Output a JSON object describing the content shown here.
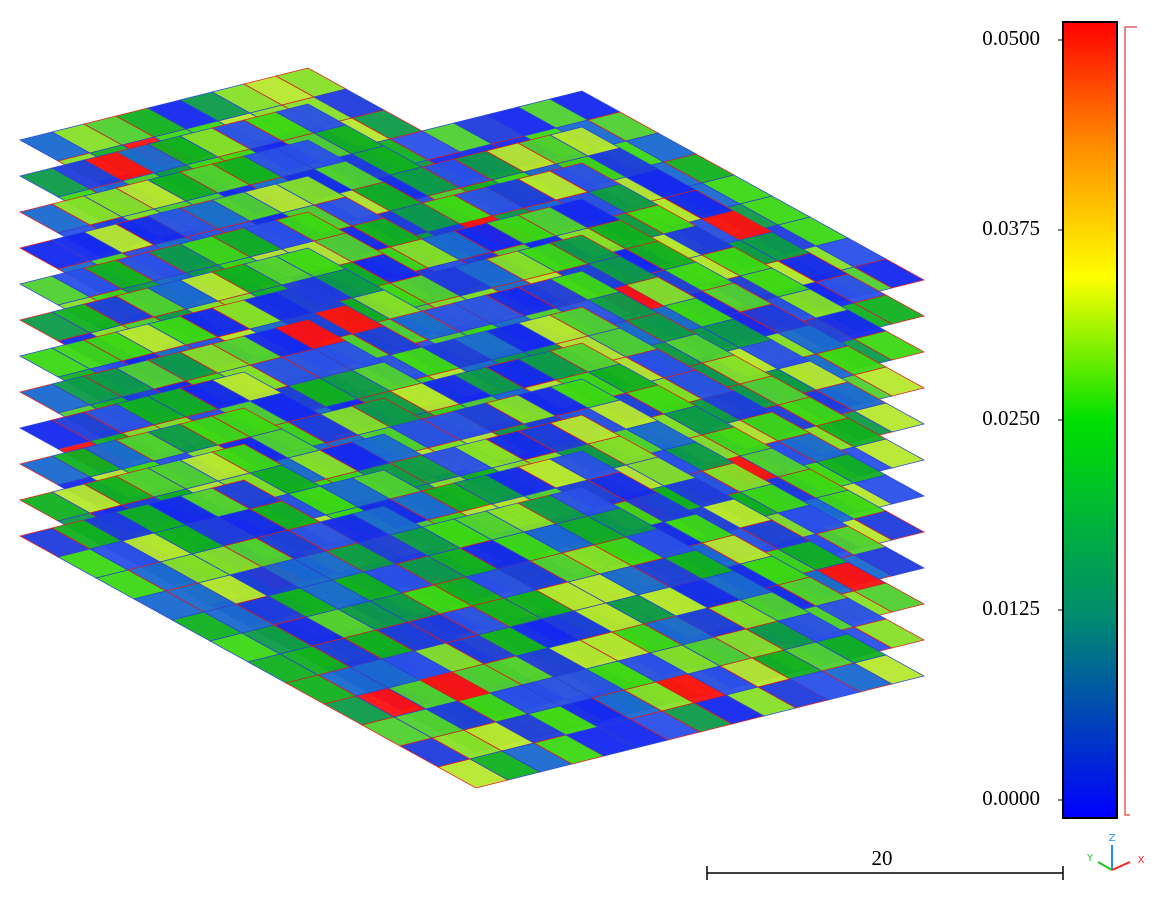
{
  "color_scale": {
    "min": 0,
    "max": 0.05,
    "ticks": [
      {
        "value": 0.05,
        "label": "0.0500"
      },
      {
        "value": 0.0375,
        "label": "0.0375"
      },
      {
        "value": 0.025,
        "label": "0.0250"
      },
      {
        "value": 0.0125,
        "label": "0.0125"
      },
      {
        "value": 0,
        "label": "0.0000"
      }
    ]
  },
  "scale_bar": {
    "length": 20
  },
  "axes": {
    "x": "X",
    "y": "Y",
    "z": "Z"
  }
}
